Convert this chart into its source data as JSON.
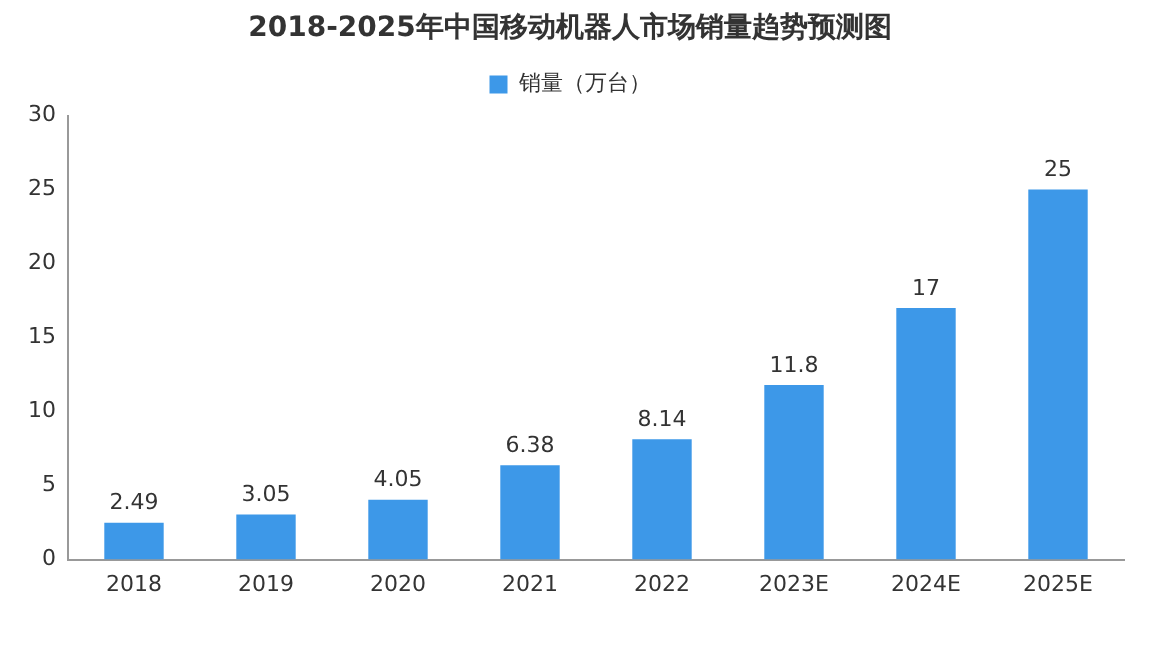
{
  "chart_data": {
    "type": "bar",
    "title": "2018-2025年中国移动机器人市场销量趋势预测图",
    "categories": [
      "2018",
      "2019",
      "2020",
      "2021",
      "2022",
      "2023E",
      "2024E",
      "2025E"
    ],
    "series": [
      {
        "name": "销量（万台）",
        "color": "#3d98e8",
        "values": [
          2.49,
          3.05,
          4.05,
          6.38,
          8.14,
          11.8,
          17,
          25
        ]
      }
    ],
    "ylim": [
      0,
      30
    ],
    "yticks": [
      0,
      5,
      10,
      15,
      20,
      25,
      30
    ],
    "grid": false,
    "legend": "top",
    "data_labels": true
  }
}
